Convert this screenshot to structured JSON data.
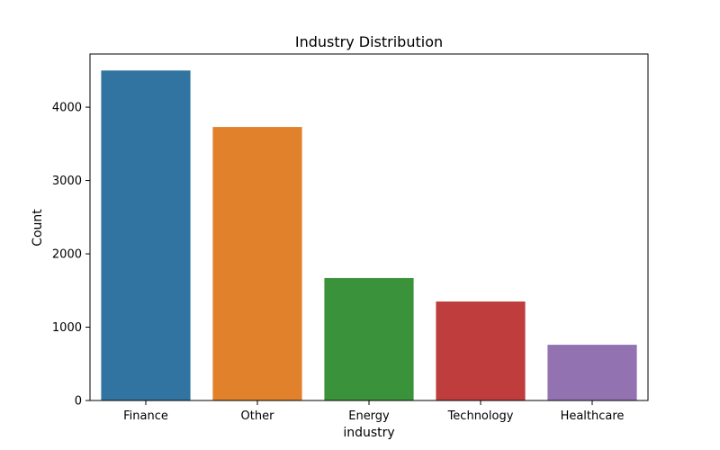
{
  "chart_data": {
    "type": "bar",
    "title": "Industry Distribution",
    "xlabel": "industry",
    "ylabel": "Count",
    "categories": [
      "Finance",
      "Other",
      "Energy",
      "Technology",
      "Healthcare"
    ],
    "values": [
      4500,
      3730,
      1670,
      1350,
      760
    ],
    "colors": [
      "#3274a1",
      "#e1812c",
      "#3a923a",
      "#c03d3e",
      "#9372b2"
    ],
    "ylim": [
      0,
      4725
    ],
    "yticks": [
      0,
      1000,
      2000,
      3000,
      4000
    ],
    "grid": false,
    "legend": "none"
  }
}
